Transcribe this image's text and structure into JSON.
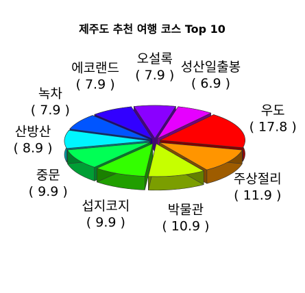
{
  "chart_data": {
    "type": "pie",
    "style": "3d-exploded",
    "title": "제주도 추천 여행 코스 Top 10",
    "slices": [
      {
        "label": "우도",
        "value": 17.8,
        "value_text": "( 17.8 )",
        "color": "#ff0000"
      },
      {
        "label": "성산일출봉",
        "value": 6.9,
        "value_text": "( 6.9 )",
        "color": "#e600ff"
      },
      {
        "label": "오설록",
        "value": 7.9,
        "value_text": "( 7.9 )",
        "color": "#8a00ff"
      },
      {
        "label": "에코랜드",
        "value": 7.9,
        "value_text": "( 7.9 )",
        "color": "#3200ff"
      },
      {
        "label": "녹차",
        "value": 7.9,
        "value_text": "( 7.9 )",
        "color": "#0055ff"
      },
      {
        "label": "산방산",
        "value": 8.9,
        "value_text": "( 8.9 )",
        "color": "#00f5ff"
      },
      {
        "label": "중문",
        "value": 9.9,
        "value_text": "( 9.9 )",
        "color": "#00ff55"
      },
      {
        "label": "섭지코지",
        "value": 9.9,
        "value_text": "( 9.9 )",
        "color": "#33ff00"
      },
      {
        "label": "박물관",
        "value": 10.9,
        "value_text": "( 10.9 )",
        "color": "#c6ff00"
      },
      {
        "label": "주상절리",
        "value": 11.9,
        "value_text": "( 11.9 )",
        "color": "#ff9500"
      }
    ]
  }
}
